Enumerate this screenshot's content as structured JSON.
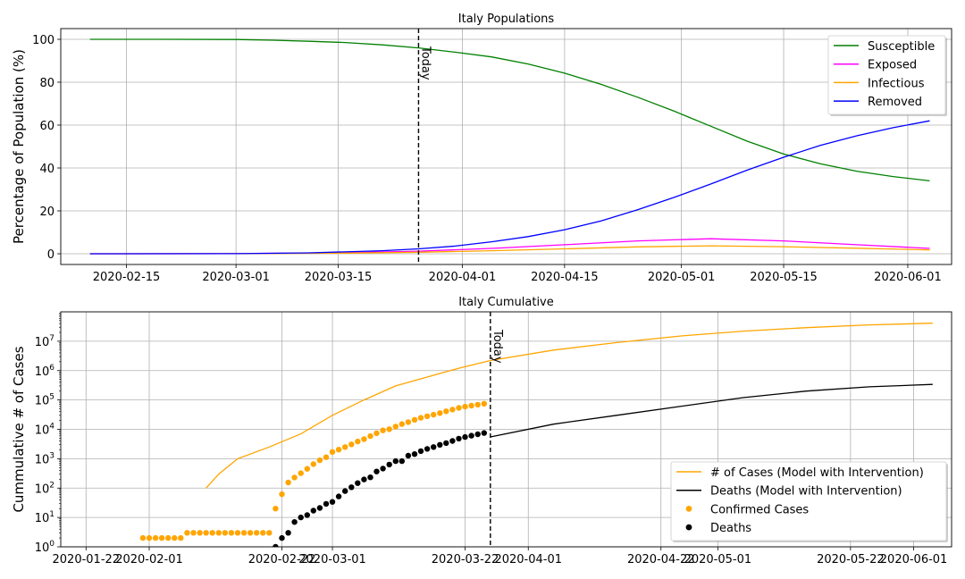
{
  "chart_data": [
    {
      "type": "line",
      "title": "Italy Populations",
      "xlabel": "",
      "ylabel": "Percentage of Population (%)",
      "x_type": "date",
      "xlim": [
        "2020-02-06",
        "2020-06-07"
      ],
      "ylim": [
        -5,
        105
      ],
      "yticks": [
        0,
        20,
        40,
        60,
        80,
        100
      ],
      "xticks": [
        "2020-02-15",
        "2020-03-01",
        "2020-03-15",
        "2020-04-01",
        "2020-04-15",
        "2020-05-01",
        "2020-05-15",
        "2020-06-01"
      ],
      "grid": true,
      "legend": "top-right",
      "today": {
        "date": "2020-03-26",
        "label": "Today"
      },
      "series": [
        {
          "name": "Susceptible",
          "color": "#008000",
          "x": [
            "2020-02-10",
            "2020-02-20",
            "2020-03-01",
            "2020-03-06",
            "2020-03-11",
            "2020-03-16",
            "2020-03-21",
            "2020-03-26",
            "2020-03-31",
            "2020-04-05",
            "2020-04-10",
            "2020-04-15",
            "2020-04-20",
            "2020-04-25",
            "2020-04-30",
            "2020-05-05",
            "2020-05-10",
            "2020-05-15",
            "2020-05-20",
            "2020-05-25",
            "2020-05-30",
            "2020-06-04"
          ],
          "y": [
            100,
            100,
            99.9,
            99.6,
            99.1,
            98.5,
            97.4,
            96,
            94,
            91.8,
            88.5,
            84.2,
            79,
            73,
            66.5,
            59.5,
            52.5,
            46.5,
            42,
            38.5,
            36,
            34
          ]
        },
        {
          "name": "Exposed",
          "color": "#ff00ff",
          "x": [
            "2020-02-10",
            "2020-03-01",
            "2020-03-16",
            "2020-03-26",
            "2020-04-05",
            "2020-04-15",
            "2020-04-25",
            "2020-05-05",
            "2020-05-15",
            "2020-05-25",
            "2020-06-04"
          ],
          "y": [
            0,
            0.1,
            0.5,
            1.2,
            2.5,
            4.2,
            6,
            7,
            6,
            4.2,
            2.5
          ]
        },
        {
          "name": "Infectious",
          "color": "#ffa500",
          "x": [
            "2020-02-10",
            "2020-03-01",
            "2020-03-16",
            "2020-03-26",
            "2020-04-05",
            "2020-04-15",
            "2020-04-25",
            "2020-05-05",
            "2020-05-15",
            "2020-05-25",
            "2020-06-04"
          ],
          "y": [
            0,
            0.05,
            0.3,
            0.7,
            1.4,
            2.3,
            3.2,
            3.7,
            3.3,
            2.6,
            1.8
          ]
        },
        {
          "name": "Removed",
          "color": "#0000ff",
          "x": [
            "2020-02-10",
            "2020-03-01",
            "2020-03-11",
            "2020-03-21",
            "2020-03-26",
            "2020-03-31",
            "2020-04-05",
            "2020-04-10",
            "2020-04-15",
            "2020-04-20",
            "2020-04-25",
            "2020-04-30",
            "2020-05-05",
            "2020-05-10",
            "2020-05-15",
            "2020-05-20",
            "2020-05-25",
            "2020-05-30",
            "2020-06-04"
          ],
          "y": [
            0,
            0.05,
            0.4,
            1.4,
            2.3,
            3.6,
            5.6,
            8,
            11.2,
            15.3,
            20.5,
            26.3,
            32.5,
            39,
            45,
            50.5,
            55,
            58.8,
            62
          ]
        }
      ]
    },
    {
      "type": "line",
      "title": "Italy Cumulative",
      "xlabel": "",
      "ylabel": "Cummulative # of Cases",
      "x_type": "date",
      "y_scale": "log",
      "xlim": [
        "2020-01-18",
        "2020-06-07"
      ],
      "ylim": [
        1,
        100000000
      ],
      "yticks": [
        "10^0",
        "10^1",
        "10^2",
        "10^3",
        "10^4",
        "10^5",
        "10^6",
        "10^7"
      ],
      "xticks": [
        "2020-01-22",
        "2020-02-01",
        "2020-02-22",
        "2020-03-01",
        "2020-03-22",
        "2020-04-01",
        "2020-04-22",
        "2020-05-01",
        "2020-05-22",
        "2020-06-01"
      ],
      "grid": true,
      "legend": "bottom-right",
      "today": {
        "date": "2020-03-26",
        "label": "Today"
      },
      "series": [
        {
          "name": "# of Cases (Model with Intervention)",
          "kind": "line",
          "color": "#ffa500",
          "x": [
            "2020-02-10",
            "2020-02-12",
            "2020-02-15",
            "2020-02-20",
            "2020-02-25",
            "2020-03-01",
            "2020-03-06",
            "2020-03-11",
            "2020-03-21",
            "2020-03-26",
            "2020-04-05",
            "2020-04-15",
            "2020-04-25",
            "2020-05-05",
            "2020-05-15",
            "2020-05-25",
            "2020-06-04"
          ],
          "y": [
            100,
            300,
            1000,
            2500,
            7000,
            30000,
            100000,
            300000,
            1200000,
            2200000,
            5000000,
            9000000,
            15000000,
            22000000,
            29000000,
            36000000,
            41000000
          ]
        },
        {
          "name": "Deaths (Model with Intervention)",
          "kind": "line",
          "color": "#000000",
          "x": [
            "2020-03-26",
            "2020-04-05",
            "2020-04-15",
            "2020-04-25",
            "2020-05-05",
            "2020-05-15",
            "2020-05-25",
            "2020-06-04"
          ],
          "y": [
            5500,
            15000,
            30000,
            60000,
            120000,
            200000,
            280000,
            340000
          ]
        },
        {
          "name": "Confirmed Cases",
          "kind": "points",
          "color": "#ffa500",
          "x": [
            "2020-01-31",
            "2020-02-01",
            "2020-02-02",
            "2020-02-03",
            "2020-02-04",
            "2020-02-05",
            "2020-02-06",
            "2020-02-07",
            "2020-02-08",
            "2020-02-09",
            "2020-02-10",
            "2020-02-11",
            "2020-02-12",
            "2020-02-13",
            "2020-02-14",
            "2020-02-15",
            "2020-02-16",
            "2020-02-17",
            "2020-02-18",
            "2020-02-19",
            "2020-02-20",
            "2020-02-21",
            "2020-02-22",
            "2020-02-23",
            "2020-02-24",
            "2020-02-25",
            "2020-02-26",
            "2020-02-27",
            "2020-02-28",
            "2020-02-29",
            "2020-03-01",
            "2020-03-02",
            "2020-03-03",
            "2020-03-04",
            "2020-03-05",
            "2020-03-06",
            "2020-03-07",
            "2020-03-08",
            "2020-03-09",
            "2020-03-10",
            "2020-03-11",
            "2020-03-12",
            "2020-03-13",
            "2020-03-14",
            "2020-03-15",
            "2020-03-16",
            "2020-03-17",
            "2020-03-18",
            "2020-03-19",
            "2020-03-20",
            "2020-03-21",
            "2020-03-22",
            "2020-03-23",
            "2020-03-24",
            "2020-03-25"
          ],
          "y": [
            2,
            2,
            2,
            2,
            2,
            2,
            2,
            3,
            3,
            3,
            3,
            3,
            3,
            3,
            3,
            3,
            3,
            3,
            3,
            3,
            3,
            20,
            62,
            155,
            229,
            322,
            453,
            655,
            888,
            1128,
            1694,
            2036,
            2502,
            3089,
            3858,
            4636,
            5883,
            7375,
            9172,
            10149,
            12462,
            15113,
            17660,
            21157,
            24747,
            27980,
            31506,
            35713,
            41035,
            47021,
            53578,
            59138,
            63927,
            69176,
            74386
          ]
        },
        {
          "name": "Deaths",
          "kind": "points",
          "color": "#000000",
          "x": [
            "2020-02-21",
            "2020-02-22",
            "2020-02-23",
            "2020-02-24",
            "2020-02-25",
            "2020-02-26",
            "2020-02-27",
            "2020-02-28",
            "2020-02-29",
            "2020-03-01",
            "2020-03-02",
            "2020-03-03",
            "2020-03-04",
            "2020-03-05",
            "2020-03-06",
            "2020-03-07",
            "2020-03-08",
            "2020-03-09",
            "2020-03-10",
            "2020-03-11",
            "2020-03-12",
            "2020-03-13",
            "2020-03-14",
            "2020-03-15",
            "2020-03-16",
            "2020-03-17",
            "2020-03-18",
            "2020-03-19",
            "2020-03-20",
            "2020-03-21",
            "2020-03-22",
            "2020-03-23",
            "2020-03-24",
            "2020-03-25"
          ],
          "y": [
            1,
            2,
            3,
            7,
            10,
            12,
            17,
            21,
            29,
            34,
            52,
            79,
            107,
            148,
            197,
            233,
            366,
            463,
            631,
            827,
            827,
            1266,
            1441,
            1809,
            2158,
            2503,
            2978,
            3405,
            4032,
            4825,
            5476,
            6077,
            6820,
            7503
          ]
        }
      ]
    }
  ]
}
